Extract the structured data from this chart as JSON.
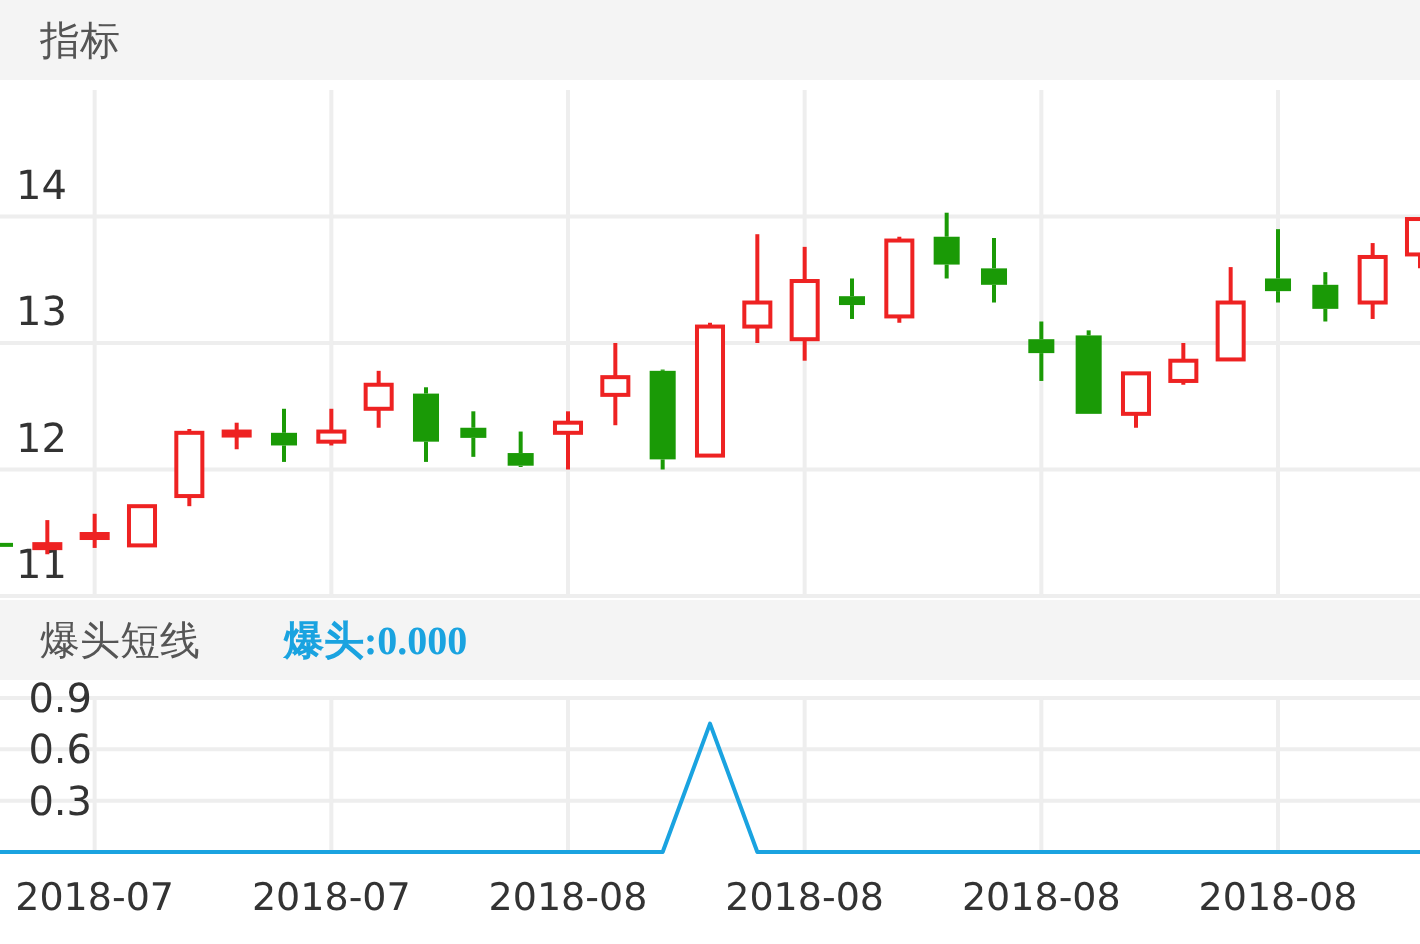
{
  "chart_data": [
    {
      "type": "candlestick",
      "title": "指标",
      "categories": [
        null,
        null,
        "2018-07",
        null,
        null,
        null,
        null,
        "2018-07",
        null,
        null,
        null,
        null,
        "2018-08",
        null,
        null,
        null,
        null,
        "2018-08",
        null,
        null,
        null,
        null,
        "2018-08",
        null,
        null,
        null,
        null,
        "2018-08",
        null,
        null,
        null
      ],
      "ohlc": [
        [
          11.42,
          11.42,
          11.4,
          11.4
        ],
        [
          11.38,
          11.6,
          11.33,
          11.41
        ],
        [
          11.47,
          11.65,
          11.38,
          11.49
        ],
        [
          11.4,
          11.71,
          11.4,
          11.71
        ],
        [
          11.79,
          12.32,
          11.71,
          12.29
        ],
        [
          12.27,
          12.37,
          12.16,
          12.3
        ],
        [
          12.29,
          12.48,
          12.06,
          12.19
        ],
        [
          12.22,
          12.48,
          12.19,
          12.3
        ],
        [
          12.48,
          12.78,
          12.33,
          12.67
        ],
        [
          12.6,
          12.65,
          12.06,
          12.22
        ],
        [
          12.33,
          12.46,
          12.1,
          12.25
        ],
        [
          12.13,
          12.3,
          12.02,
          12.03
        ],
        [
          12.29,
          12.46,
          12.0,
          12.37
        ],
        [
          12.59,
          13.0,
          12.35,
          12.73
        ],
        [
          12.78,
          12.79,
          12.0,
          12.08
        ],
        [
          12.11,
          13.16,
          12.11,
          13.13
        ],
        [
          13.13,
          13.86,
          13.0,
          13.32
        ],
        [
          13.03,
          13.76,
          12.86,
          13.49
        ],
        [
          13.37,
          13.51,
          13.19,
          13.3
        ],
        [
          13.21,
          13.84,
          13.16,
          13.81
        ],
        [
          13.84,
          14.03,
          13.51,
          13.62
        ],
        [
          13.59,
          13.83,
          13.32,
          13.46
        ],
        [
          13.03,
          13.17,
          12.7,
          12.92
        ],
        [
          13.06,
          13.1,
          12.44,
          12.44
        ],
        [
          12.44,
          12.76,
          12.33,
          12.76
        ],
        [
          12.7,
          13.0,
          12.67,
          12.86
        ],
        [
          12.87,
          13.6,
          12.87,
          13.32
        ],
        [
          13.51,
          13.9,
          13.32,
          13.41
        ],
        [
          13.46,
          13.56,
          13.17,
          13.27
        ],
        [
          13.32,
          13.79,
          13.19,
          13.68
        ],
        [
          13.7,
          13.98,
          13.59,
          13.98
        ]
      ],
      "ylim": [
        11,
        15
      ],
      "yticks": [
        11,
        12,
        13,
        14
      ],
      "tick_labels": "y",
      "grid": true
    },
    {
      "type": "line",
      "title": "爆头短线",
      "annotations": [
        "爆头:0.000"
      ],
      "categories": [
        null,
        null,
        "2018-07",
        null,
        null,
        null,
        null,
        "2018-07",
        null,
        null,
        null,
        null,
        "2018-08",
        null,
        null,
        null,
        null,
        "2018-08",
        null,
        null,
        null,
        null,
        "2018-08",
        null,
        null,
        null,
        null,
        "2018-08",
        null,
        null,
        null
      ],
      "series": [
        {
          "color": "#1aa3e0",
          "values": [
            0,
            0,
            0,
            0,
            0,
            0,
            0,
            0,
            0,
            0,
            0,
            0,
            0,
            0,
            0,
            0.75,
            0,
            0,
            0,
            0,
            0,
            0,
            0,
            0,
            0,
            0,
            0,
            0,
            0,
            0,
            0
          ]
        }
      ],
      "ylim": [
        0,
        0.9
      ],
      "yticks": [
        0.3,
        0.6,
        0.9
      ],
      "grid": true
    }
  ]
}
